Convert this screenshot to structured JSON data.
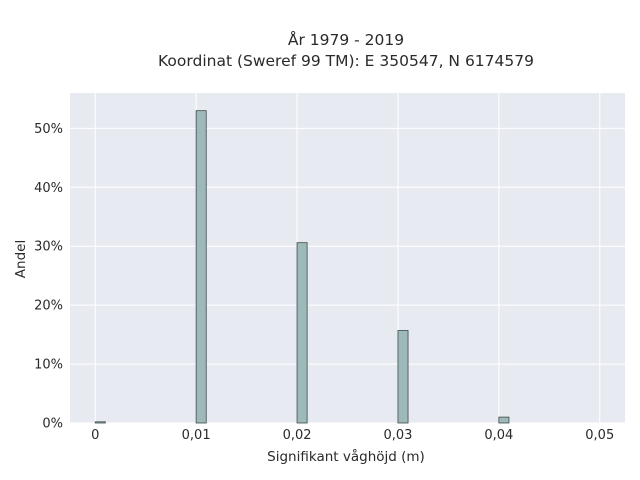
{
  "chart_data": {
    "type": "bar",
    "title_line1": "År 1979 - 2019",
    "title_line2": "Koordinat (Sweref 99 TM): E 350547, N 6174579",
    "xlabel": "Signifikant våghöjd (m)",
    "ylabel": "Andel",
    "xlim": [
      -0.0025,
      0.0525
    ],
    "ylim": [
      0,
      0.56
    ],
    "x_ticks": [
      0,
      0.01,
      0.02,
      0.03,
      0.04,
      0.05
    ],
    "x_tick_labels": [
      "0",
      "0,01",
      "0,02",
      "0,03",
      "0,04",
      "0,05"
    ],
    "y_ticks": [
      0,
      0.1,
      0.2,
      0.3,
      0.4,
      0.5
    ],
    "y_tick_labels": [
      "0%",
      "10%",
      "20%",
      "30%",
      "40%",
      "50%"
    ],
    "bar_width": 0.001,
    "bars": [
      {
        "x": 0.0,
        "value": 0.002
      },
      {
        "x": 0.01,
        "value": 0.53
      },
      {
        "x": 0.02,
        "value": 0.306
      },
      {
        "x": 0.03,
        "value": 0.157
      },
      {
        "x": 0.04,
        "value": 0.01
      }
    ],
    "grid": true,
    "colors": {
      "plot_background": "#e8eaf2",
      "grid": "#ffffff",
      "bar_fill": "#9db9b9",
      "bar_stroke": "#3d4a4a"
    }
  }
}
